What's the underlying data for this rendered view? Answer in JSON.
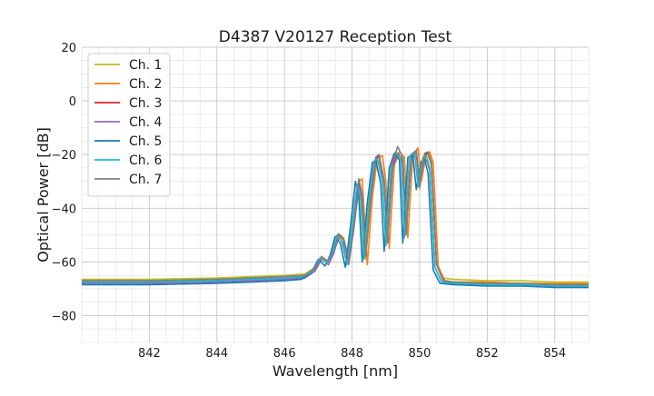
{
  "chart_data": {
    "type": "line",
    "title": "D4387 V20127 Reception Test",
    "xlabel": "Wavelength [nm]",
    "ylabel": "Optical Power [dB]",
    "xlim": [
      840.0,
      855.0
    ],
    "ylim": [
      -90,
      20
    ],
    "xticks": [
      842,
      844,
      846,
      848,
      850,
      852,
      854
    ],
    "yticks": [
      -80,
      -60,
      -40,
      -20,
      0,
      20
    ],
    "grid": true,
    "legend_position": "upper left",
    "series": [
      {
        "name": "Ch. 1",
        "color": "#bcbd22",
        "x": [
          840.0,
          842.0,
          844.0,
          846.0,
          846.6,
          846.9,
          847.1,
          847.3,
          847.45,
          847.6,
          847.75,
          847.9,
          848.05,
          848.2,
          848.3,
          848.4,
          848.55,
          848.7,
          848.8,
          848.95,
          849.05,
          849.2,
          849.35,
          849.5,
          849.6,
          849.75,
          849.9,
          850.0,
          850.15,
          850.25,
          850.35,
          850.5,
          850.7,
          851.0,
          852.0,
          853.0,
          854.0,
          855.0
        ],
        "y": [
          -66.5,
          -66.5,
          -66.0,
          -65.0,
          -64.5,
          -62.0,
          -58.5,
          -60.0,
          -56.0,
          -49.5,
          -51.0,
          -59.0,
          -46.0,
          -33.5,
          -39.0,
          -59.0,
          -38.0,
          -24.0,
          -22.5,
          -31.0,
          -50.0,
          -25.5,
          -20.0,
          -23.0,
          -48.0,
          -22.0,
          -19.5,
          -33.0,
          -20.5,
          -20.0,
          -24.0,
          -60.0,
          -66.0,
          -66.5,
          -67.0,
          -67.0,
          -67.5,
          -67.5
        ]
      },
      {
        "name": "Ch. 2",
        "color": "#ff7f0e",
        "x": [
          840.0,
          842.0,
          844.0,
          846.0,
          846.6,
          846.9,
          847.1,
          847.3,
          847.45,
          847.6,
          847.75,
          847.9,
          848.05,
          848.2,
          848.3,
          848.45,
          848.6,
          848.75,
          848.9,
          849.0,
          849.1,
          849.25,
          849.4,
          849.55,
          849.65,
          849.8,
          849.95,
          850.05,
          850.2,
          850.3,
          850.4,
          850.55,
          850.75,
          851.0,
          852.0,
          853.0,
          854.0,
          855.0
        ],
        "y": [
          -67.0,
          -67.0,
          -66.5,
          -65.5,
          -65.0,
          -63.0,
          -59.0,
          -61.0,
          -57.0,
          -50.0,
          -52.0,
          -60.0,
          -47.0,
          -30.0,
          -29.0,
          -61.0,
          -36.0,
          -21.0,
          -20.5,
          -30.0,
          -55.0,
          -24.0,
          -19.0,
          -21.0,
          -51.0,
          -20.0,
          -17.5,
          -30.0,
          -19.5,
          -19.0,
          -23.0,
          -62.0,
          -67.0,
          -67.5,
          -67.5,
          -68.0,
          -68.0,
          -68.0
        ]
      },
      {
        "name": "Ch. 3",
        "color": "#d62728",
        "x": [
          840.0,
          842.0,
          844.0,
          846.0,
          846.6,
          846.9,
          847.1,
          847.3,
          847.45,
          847.6,
          847.75,
          847.9,
          848.05,
          848.2,
          848.3,
          848.4,
          848.55,
          848.7,
          848.8,
          848.95,
          849.05,
          849.2,
          849.35,
          849.5,
          849.6,
          849.75,
          849.9,
          850.0,
          850.15,
          850.25,
          850.35,
          850.5,
          850.7,
          851.0,
          852.0,
          853.0,
          854.0,
          855.0
        ],
        "y": [
          -67.5,
          -67.5,
          -67.0,
          -66.0,
          -65.5,
          -63.0,
          -58.0,
          -60.0,
          -56.0,
          -50.0,
          -51.5,
          -60.0,
          -46.5,
          -31.0,
          -36.0,
          -58.0,
          -36.0,
          -21.5,
          -20.5,
          -30.0,
          -52.0,
          -24.0,
          -19.5,
          -22.0,
          -49.0,
          -21.0,
          -18.5,
          -31.0,
          -20.0,
          -19.5,
          -23.5,
          -61.0,
          -67.0,
          -67.5,
          -68.0,
          -68.0,
          -68.5,
          -68.5
        ]
      },
      {
        "name": "Ch. 4",
        "color": "#9467bd",
        "x": [
          840.0,
          842.0,
          844.0,
          846.0,
          846.6,
          846.9,
          847.1,
          847.3,
          847.45,
          847.6,
          847.75,
          847.9,
          848.05,
          848.2,
          848.3,
          848.4,
          848.55,
          848.7,
          848.8,
          848.95,
          849.05,
          849.2,
          849.35,
          849.5,
          849.6,
          849.75,
          849.9,
          850.0,
          850.1,
          850.2,
          850.3,
          850.45,
          850.65,
          851.0,
          852.0,
          853.0,
          854.0,
          855.0
        ],
        "y": [
          -68.0,
          -68.0,
          -67.5,
          -66.5,
          -66.0,
          -63.5,
          -59.0,
          -61.0,
          -57.0,
          -51.0,
          -53.0,
          -61.0,
          -48.0,
          -31.5,
          -37.0,
          -57.0,
          -37.0,
          -22.0,
          -21.0,
          -31.0,
          -53.0,
          -25.0,
          -20.0,
          -22.5,
          -49.0,
          -22.0,
          -20.0,
          -32.0,
          -22.0,
          -22.0,
          -26.0,
          -62.0,
          -67.5,
          -68.0,
          -68.5,
          -68.5,
          -69.0,
          -69.0
        ]
      },
      {
        "name": "Ch. 5",
        "color": "#1f77b4",
        "x": [
          840.0,
          842.0,
          844.0,
          846.0,
          846.5,
          846.8,
          847.0,
          847.2,
          847.35,
          847.5,
          847.65,
          847.8,
          847.95,
          848.1,
          848.2,
          848.3,
          848.45,
          848.6,
          848.7,
          848.85,
          848.95,
          849.1,
          849.25,
          849.4,
          849.5,
          849.65,
          849.8,
          849.9,
          850.05,
          850.15,
          850.25,
          850.4,
          850.6,
          851.0,
          852.0,
          853.0,
          854.0,
          855.0
        ],
        "y": [
          -68.5,
          -68.5,
          -68.0,
          -67.0,
          -66.5,
          -64.0,
          -59.0,
          -61.5,
          -57.5,
          -50.5,
          -53.0,
          -62.0,
          -47.0,
          -30.0,
          -36.0,
          -60.0,
          -38.0,
          -23.0,
          -22.0,
          -31.0,
          -56.0,
          -25.0,
          -19.5,
          -22.0,
          -53.0,
          -21.0,
          -20.5,
          -33.0,
          -22.5,
          -22.0,
          -27.0,
          -63.0,
          -68.0,
          -68.5,
          -69.0,
          -69.0,
          -69.5,
          -69.5
        ]
      },
      {
        "name": "Ch. 6",
        "color": "#17becf",
        "x": [
          840.0,
          842.0,
          844.0,
          846.0,
          846.55,
          846.85,
          847.05,
          847.25,
          847.4,
          847.55,
          847.7,
          847.85,
          848.0,
          848.15,
          848.25,
          848.35,
          848.5,
          848.65,
          848.75,
          848.9,
          849.0,
          849.15,
          849.3,
          849.45,
          849.55,
          849.7,
          849.85,
          849.95,
          850.1,
          850.2,
          850.3,
          850.45,
          850.65,
          851.0,
          852.0,
          853.0,
          854.0,
          855.0
        ],
        "y": [
          -67.5,
          -67.5,
          -67.0,
          -66.0,
          -65.5,
          -63.5,
          -58.5,
          -60.5,
          -57.0,
          -50.0,
          -52.5,
          -61.0,
          -46.5,
          -31.0,
          -36.5,
          -59.0,
          -37.0,
          -22.5,
          -21.5,
          -30.5,
          -54.0,
          -24.5,
          -19.0,
          -21.5,
          -51.0,
          -20.5,
          -19.5,
          -32.0,
          -21.0,
          -20.5,
          -25.0,
          -62.0,
          -67.5,
          -68.0,
          -68.5,
          -68.5,
          -69.0,
          -69.0
        ]
      },
      {
        "name": "Ch. 7",
        "color": "#7f7f7f",
        "x": [
          840.0,
          842.0,
          844.0,
          846.0,
          846.6,
          846.9,
          847.1,
          847.3,
          847.45,
          847.6,
          847.75,
          847.9,
          848.05,
          848.2,
          848.3,
          848.4,
          848.55,
          848.7,
          848.8,
          848.95,
          849.05,
          849.2,
          849.35,
          849.5,
          849.6,
          849.75,
          849.9,
          850.0,
          850.15,
          850.25,
          850.35,
          850.5,
          850.7,
          851.0,
          852.0,
          853.0,
          854.0,
          855.0
        ],
        "y": [
          -67.0,
          -67.0,
          -66.5,
          -65.5,
          -65.0,
          -62.5,
          -58.0,
          -60.0,
          -56.5,
          -49.5,
          -51.5,
          -60.0,
          -46.0,
          -29.0,
          -35.0,
          -58.0,
          -36.0,
          -21.0,
          -20.0,
          -29.5,
          -53.0,
          -23.0,
          -17.0,
          -21.0,
          -50.0,
          -20.0,
          -18.5,
          -31.0,
          -19.5,
          -19.0,
          -23.0,
          -61.0,
          -67.0,
          -67.5,
          -68.0,
          -68.0,
          -68.5,
          -68.5
        ]
      }
    ]
  }
}
